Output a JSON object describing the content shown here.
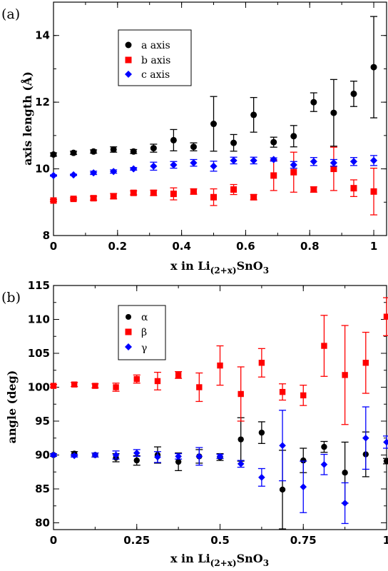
{
  "chart_data": [
    {
      "type": "scatter",
      "panel_label": "(a)",
      "xlabel": {
        "pre": "x in  Li",
        "sub": "(2+x)",
        "post": "SnO",
        "sub2": "3"
      },
      "ylabel": "axis length  (Å)",
      "xlim": [
        0,
        1.04
      ],
      "ylim": [
        8,
        15
      ],
      "xticks": [
        0,
        0.2,
        0.4,
        0.6,
        0.8,
        1
      ],
      "xtick_labels": [
        "0",
        "0.2",
        "0.4",
        "0.6",
        "0.8",
        "1"
      ],
      "yticks": [
        8,
        10,
        12,
        14
      ],
      "ytick_labels": [
        "8",
        "10",
        "12",
        "14"
      ],
      "grid": false,
      "legend_position": "upper-left",
      "series": [
        {
          "name": "a  axis",
          "color": "#000000",
          "marker": "circle",
          "x": [
            0,
            0.0625,
            0.125,
            0.1875,
            0.25,
            0.3125,
            0.375,
            0.4375,
            0.5,
            0.5625,
            0.625,
            0.6875,
            0.75,
            0.8125,
            0.875,
            0.9375,
            1
          ],
          "y": [
            10.43,
            10.48,
            10.52,
            10.58,
            10.52,
            10.62,
            10.86,
            10.66,
            11.35,
            10.78,
            11.62,
            10.8,
            10.98,
            12.0,
            11.68,
            12.25,
            13.05
          ],
          "err": [
            0.05,
            0.05,
            0.05,
            0.08,
            0.06,
            0.12,
            0.32,
            0.12,
            0.82,
            0.25,
            0.52,
            0.15,
            0.32,
            0.28,
            1.0,
            0.38,
            1.52
          ]
        },
        {
          "name": "b axis",
          "color": "#ff0000",
          "marker": "square",
          "x": [
            0,
            0.0625,
            0.125,
            0.1875,
            0.25,
            0.3125,
            0.375,
            0.4375,
            0.5,
            0.5625,
            0.625,
            0.6875,
            0.75,
            0.8125,
            0.875,
            0.9375,
            1
          ],
          "y": [
            9.05,
            9.1,
            9.12,
            9.18,
            9.28,
            9.28,
            9.25,
            9.32,
            9.15,
            9.38,
            9.15,
            9.8,
            9.9,
            9.38,
            10.0,
            9.42,
            9.32
          ],
          "err": [
            0.03,
            0.03,
            0.06,
            0.08,
            0.06,
            0.08,
            0.18,
            0.08,
            0.25,
            0.15,
            0.08,
            0.45,
            0.6,
            0.08,
            0.65,
            0.25,
            0.7
          ]
        },
        {
          "name": "c axis",
          "color": "#0000ff",
          "marker": "diamond",
          "x": [
            0,
            0.0625,
            0.125,
            0.1875,
            0.25,
            0.3125,
            0.375,
            0.4375,
            0.5,
            0.5625,
            0.625,
            0.6875,
            0.75,
            0.8125,
            0.875,
            0.9375,
            1
          ],
          "y": [
            9.8,
            9.82,
            9.88,
            9.92,
            10.0,
            10.08,
            10.12,
            10.18,
            10.08,
            10.25,
            10.25,
            10.28,
            10.12,
            10.22,
            10.18,
            10.22,
            10.25
          ],
          "err": [
            0.02,
            0.02,
            0.05,
            0.05,
            0.04,
            0.12,
            0.1,
            0.1,
            0.15,
            0.1,
            0.1,
            0.05,
            0.1,
            0.12,
            0.1,
            0.12,
            0.15
          ]
        }
      ]
    },
    {
      "type": "scatter",
      "panel_label": "(b)",
      "xlabel": {
        "pre": "x in Li",
        "sub": "(2+x)",
        "post": "SnO",
        "sub2": "3"
      },
      "ylabel": "angle  (deg)",
      "xlim": [
        0,
        1.0
      ],
      "ylim": [
        79,
        115
      ],
      "xticks": [
        0,
        0.25,
        0.5,
        0.75,
        1
      ],
      "xtick_labels": [
        "0",
        "0.25",
        "0.5",
        "0.75",
        "1"
      ],
      "yticks": [
        80,
        85,
        90,
        95,
        100,
        105,
        110,
        115
      ],
      "ytick_labels": [
        "80",
        "85",
        "90",
        "95",
        "100",
        "105",
        "110",
        "115"
      ],
      "grid": false,
      "legend_position": "upper-left",
      "series": [
        {
          "name": "α",
          "color": "#000000",
          "marker": "circle",
          "x": [
            0,
            0.0625,
            0.125,
            0.1875,
            0.25,
            0.3125,
            0.375,
            0.4375,
            0.5,
            0.5625,
            0.625,
            0.6875,
            0.75,
            0.8125,
            0.875,
            0.9375,
            1
          ],
          "y": [
            90.0,
            90.2,
            90.0,
            89.6,
            89.2,
            90.0,
            89.0,
            89.8,
            89.7,
            92.3,
            93.3,
            84.9,
            89.2,
            91.2,
            87.4,
            90.1,
            89.1
          ],
          "err": [
            0.2,
            0.3,
            0.3,
            0.6,
            0.7,
            1.2,
            1.3,
            1.0,
            0.5,
            3.2,
            1.6,
            5.8,
            1.8,
            0.8,
            4.5,
            3.3,
            0.4
          ]
        },
        {
          "name": "β",
          "color": "#ff0000",
          "marker": "square",
          "x": [
            0,
            0.0625,
            0.125,
            0.1875,
            0.25,
            0.3125,
            0.375,
            0.4375,
            0.5,
            0.5625,
            0.625,
            0.6875,
            0.75,
            0.8125,
            0.875,
            0.9375,
            1
          ],
          "y": [
            100.2,
            100.4,
            100.2,
            100.0,
            101.2,
            100.9,
            101.8,
            100.0,
            103.2,
            99.0,
            103.6,
            99.3,
            98.8,
            106.1,
            101.8,
            103.6,
            110.4
          ],
          "err": [
            0.2,
            0.3,
            0.3,
            0.6,
            0.6,
            1.3,
            0.5,
            2.1,
            2.9,
            4.0,
            2.1,
            1.2,
            1.5,
            4.5,
            7.3,
            4.5,
            2.8
          ]
        },
        {
          "name": "γ",
          "color": "#0000ff",
          "marker": "diamond",
          "x": [
            0,
            0.0625,
            0.125,
            0.1875,
            0.25,
            0.3125,
            0.375,
            0.4375,
            0.5,
            0.5625,
            0.625,
            0.6875,
            0.75,
            0.8125,
            0.875,
            0.9375,
            1
          ],
          "y": [
            90.0,
            89.9,
            90.0,
            90.0,
            90.3,
            89.7,
            89.8,
            89.8,
            89.8,
            88.7,
            86.7,
            91.4,
            85.3,
            88.6,
            82.9,
            92.5,
            91.9
          ],
          "err": [
            0.2,
            0.2,
            0.3,
            0.6,
            0.5,
            0.8,
            0.4,
            1.3,
            0.3,
            0.5,
            1.3,
            5.2,
            3.8,
            1.5,
            3.0,
            4.6,
            0.9
          ]
        }
      ]
    }
  ]
}
